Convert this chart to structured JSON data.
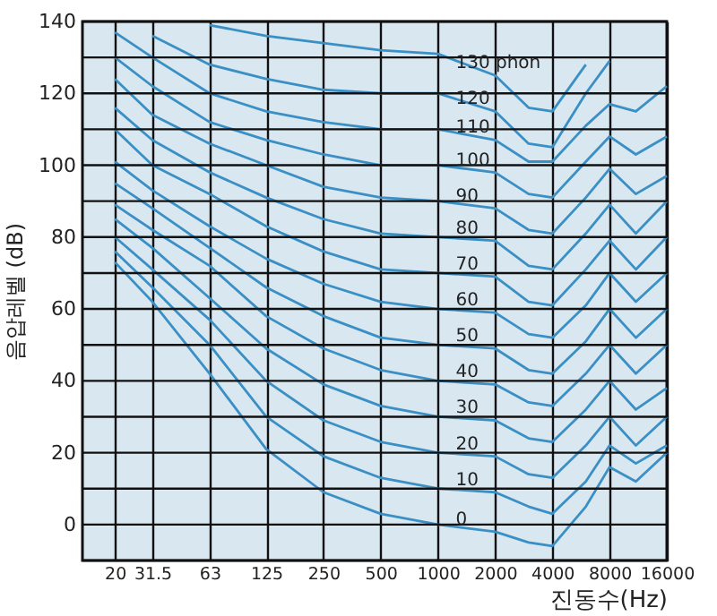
{
  "chart_data": {
    "type": "line",
    "xlabel": "진동수(Hz)",
    "ylabel": "음압레벨 (dB)",
    "x": [
      20,
      31.5,
      63,
      125,
      250,
      500,
      1000,
      2000,
      3000,
      4000,
      6000,
      8000,
      11000,
      16000
    ],
    "series": [
      {
        "name": "130 phon",
        "color": "#3a8fc4",
        "values": [
          null,
          null,
          139,
          136,
          134,
          132,
          131,
          125,
          116,
          115,
          128,
          null,
          null,
          null
        ]
      },
      {
        "name": "120",
        "color": "#3a8fc4",
        "values": [
          null,
          136,
          128,
          124,
          121,
          120,
          120,
          115,
          106,
          105,
          120,
          129,
          null,
          null
        ]
      },
      {
        "name": "110",
        "color": "#3a8fc4",
        "values": [
          137,
          130,
          120,
          115,
          112,
          110,
          110,
          107,
          101,
          101,
          111,
          117,
          115,
          122
        ]
      },
      {
        "name": "100",
        "color": "#3a8fc4",
        "values": [
          130,
          122,
          112,
          107,
          103,
          100,
          100,
          98,
          92,
          91,
          101,
          108,
          103,
          108
        ]
      },
      {
        "name": "90",
        "color": "#3a8fc4",
        "values": [
          124,
          114,
          106,
          100,
          94,
          91,
          90,
          88,
          82,
          81,
          91,
          99,
          92,
          97
        ]
      },
      {
        "name": "80",
        "color": "#3a8fc4",
        "values": [
          116,
          107,
          98,
          91,
          85,
          81,
          80,
          79,
          72,
          71,
          81,
          89,
          81,
          90
        ]
      },
      {
        "name": "70",
        "color": "#3a8fc4",
        "values": [
          110,
          100,
          92,
          83,
          76,
          71,
          70,
          69,
          62,
          61,
          71,
          79,
          71,
          80
        ]
      },
      {
        "name": "60",
        "color": "#3a8fc4",
        "values": [
          101,
          93,
          83,
          74,
          67,
          62,
          60,
          59,
          53,
          52,
          61,
          70,
          62,
          70
        ]
      },
      {
        "name": "50",
        "color": "#3a8fc4",
        "values": [
          95,
          88,
          77,
          66,
          58,
          52,
          50,
          49,
          43,
          42,
          51,
          60,
          52,
          60
        ]
      },
      {
        "name": "40",
        "color": "#3a8fc4",
        "values": [
          89,
          82,
          72,
          58,
          49,
          43,
          40,
          39,
          34,
          33,
          42,
          50,
          42,
          50
        ]
      },
      {
        "name": "30",
        "color": "#3a8fc4",
        "values": [
          85,
          77,
          63,
          49,
          39,
          33,
          30,
          29,
          24,
          23,
          32,
          40,
          32,
          38
        ]
      },
      {
        "name": "20",
        "color": "#3a8fc4",
        "values": [
          80,
          71,
          57,
          40,
          29,
          23,
          20,
          19,
          14,
          13,
          22,
          30,
          22,
          30
        ]
      },
      {
        "name": "10",
        "color": "#3a8fc4",
        "values": [
          76,
          66,
          50,
          30,
          19,
          13,
          10,
          9,
          5,
          3,
          12,
          22,
          17,
          22
        ]
      },
      {
        "name": "0",
        "color": "#3a8fc4",
        "values": [
          73,
          62,
          42,
          21,
          9,
          3,
          0,
          -2,
          -5,
          -6,
          5,
          16,
          12,
          20
        ]
      }
    ],
    "xlim": [
      13.5,
      16000
    ],
    "xticks": [
      20,
      31.5,
      63,
      125,
      250,
      500,
      1000,
      2000,
      4000,
      8000,
      16000
    ],
    "ylim": [
      -10,
      140
    ],
    "yticks": [
      {
        "value": -10,
        "label": null
      },
      0,
      {
        "value": 10,
        "label": null
      },
      20,
      {
        "value": 30,
        "label": null
      },
      40,
      {
        "value": 50,
        "label": null
      },
      60,
      {
        "value": 70,
        "label": null
      },
      80,
      {
        "value": 90,
        "label": null
      },
      100,
      {
        "value": 110,
        "label": null
      },
      120,
      {
        "value": 130,
        "label": null
      },
      140
    ],
    "log": "x",
    "grid": true,
    "legend": false,
    "line_style": "solid",
    "marker": "none"
  }
}
